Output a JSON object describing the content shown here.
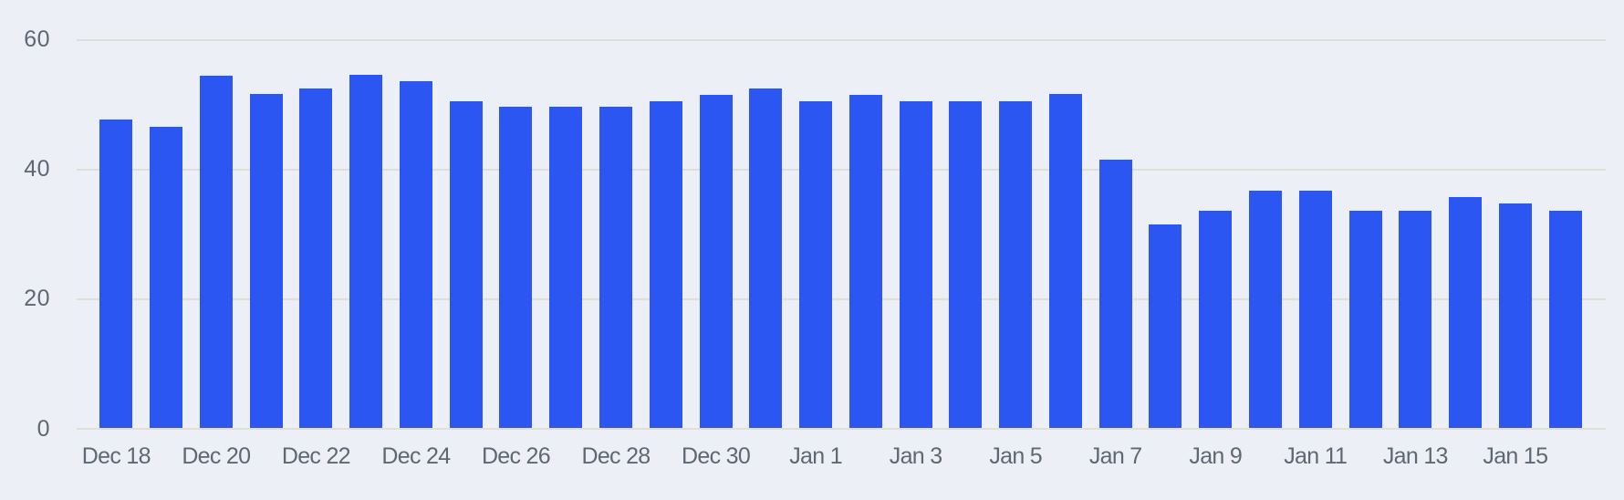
{
  "chart_data": {
    "type": "bar",
    "title": "",
    "xlabel": "",
    "ylabel": "",
    "categories": [
      "Dec 18",
      "Dec 19",
      "Dec 20",
      "Dec 21",
      "Dec 22",
      "Dec 23",
      "Dec 24",
      "Dec 25",
      "Dec 26",
      "Dec 27",
      "Dec 28",
      "Dec 29",
      "Dec 30",
      "Dec 31",
      "Jan 1",
      "Jan 2",
      "Jan 3",
      "Jan 4",
      "Jan 5",
      "Jan 6",
      "Jan 7",
      "Jan 8",
      "Jan 9",
      "Jan 10",
      "Jan 11",
      "Jan 12",
      "Jan 13",
      "Jan 14",
      "Jan 15",
      "Jan 16"
    ],
    "values": [
      47.7,
      46.6,
      54.5,
      51.7,
      52.5,
      54.6,
      53.7,
      50.6,
      49.7,
      49.7,
      49.7,
      50.6,
      51.6,
      52.5,
      50.5,
      51.6,
      50.6,
      50.6,
      50.5,
      51.7,
      41.6,
      31.6,
      33.7,
      36.7,
      36.8,
      33.6,
      33.6,
      35.7,
      34.8,
      33.7
    ],
    "x_tick_labels": [
      "Dec 18",
      "Dec 20",
      "Dec 22",
      "Dec 24",
      "Dec 26",
      "Dec 28",
      "Dec 30",
      "Jan 1",
      "Jan 3",
      "Jan 5",
      "Jan 7",
      "Jan 9",
      "Jan 11",
      "Jan 13",
      "Jan 15"
    ],
    "x_tick_every": 2,
    "y_tick_labels": [
      "0",
      "20",
      "40",
      "60"
    ],
    "y_ticks": [
      0,
      20,
      40,
      60
    ],
    "ylim": [
      0,
      60
    ],
    "grid": "horizontal",
    "legend": "none",
    "colors": {
      "background": "#edeff7",
      "bar": "#2c56f2",
      "gridline": "#e1dfd5",
      "axis_label": "#5d6873"
    }
  }
}
